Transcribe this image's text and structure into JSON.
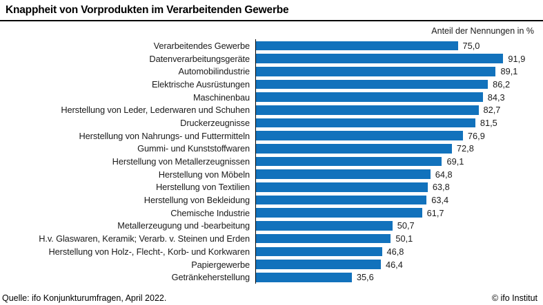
{
  "header": {
    "title": "Knappheit von Vorprodukten im Verarbeitenden Gewerbe",
    "subtitle": "Anteil der Nennungen in %"
  },
  "chart_data": {
    "type": "bar",
    "orientation": "horizontal",
    "title": "Knappheit von Vorprodukten im Verarbeitenden Gewerbe",
    "value_axis_label": "Anteil der Nennungen in %",
    "xlim": [
      0,
      100
    ],
    "grid": false,
    "legend": false,
    "bar_color": "#1272BC",
    "categories": [
      "Verarbeitendes Gewerbe",
      "Datenverarbeitungsgeräte",
      "Automobilindustrie",
      "Elektrische Ausrüstungen",
      "Maschinenbau",
      "Herstellung von Leder, Lederwaren und Schuhen",
      "Druckerzeugnisse",
      "Herstellung von Nahrungs- und Futtermitteln",
      "Gummi- und Kunststoffwaren",
      "Herstellung von Metallerzeugnissen",
      "Herstellung von Möbeln",
      "Herstellung von Textilien",
      "Herstellung von Bekleidung",
      "Chemische Industrie",
      "Metallerzeugung und -bearbeitung",
      "H.v. Glaswaren, Keramik; Verarb. v. Steinen und Erden",
      "Herstellung von Holz-, Flecht-, Korb- und Korkwaren",
      "Papiergewerbe",
      "Getränkeherstellung"
    ],
    "values": [
      75.0,
      91.9,
      89.1,
      86.2,
      84.3,
      82.7,
      81.5,
      76.9,
      72.8,
      69.1,
      64.8,
      63.8,
      63.4,
      61.7,
      50.7,
      50.1,
      46.8,
      46.4,
      35.6
    ],
    "value_labels": [
      "75,0",
      "91,9",
      "89,1",
      "86,2",
      "84,3",
      "82,7",
      "81,5",
      "76,9",
      "72,8",
      "69,1",
      "64,8",
      "63,8",
      "63,4",
      "61,7",
      "50,7",
      "50,1",
      "46,8",
      "46,4",
      "35,6"
    ]
  },
  "footer": {
    "source": "Quelle: ifo Konjunkturumfragen, April 2022.",
    "copyright": "© ifo Institut"
  }
}
